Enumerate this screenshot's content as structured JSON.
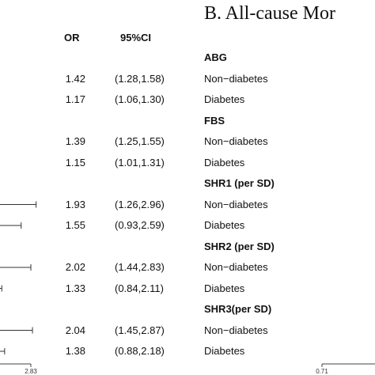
{
  "header": {
    "panel_title": "B. All-cause Mor",
    "col_or": "OR",
    "col_ci": "95%CI"
  },
  "chart_data": {
    "type": "forest",
    "title": "",
    "x_tick_left": "2.83",
    "x_tick_right": "0.71",
    "groups": [
      {
        "name": "ABG",
        "rows": [
          {
            "label": "Non−diabetes",
            "or": 1.42,
            "or_text": "1.42",
            "lo": 1.28,
            "hi": 1.58,
            "ci_text": "(1.28,1.58)"
          },
          {
            "label": "Diabetes",
            "or": 1.17,
            "or_text": "1.17",
            "lo": 1.06,
            "hi": 1.3,
            "ci_text": "(1.06,1.30)"
          }
        ]
      },
      {
        "name": "FBS",
        "rows": [
          {
            "label": "Non−diabetes",
            "or": 1.39,
            "or_text": "1.39",
            "lo": 1.25,
            "hi": 1.55,
            "ci_text": "(1.25,1.55)"
          },
          {
            "label": "Diabetes",
            "or": 1.15,
            "or_text": "1.15",
            "lo": 1.01,
            "hi": 1.31,
            "ci_text": "(1.01,1.31)"
          }
        ]
      },
      {
        "name": "SHR1 (per SD)",
        "rows": [
          {
            "label": "Non−diabetes",
            "or": 1.93,
            "or_text": "1.93",
            "lo": 1.26,
            "hi": 2.96,
            "ci_text": "(1.26,2.96)"
          },
          {
            "label": "Diabetes",
            "or": 1.55,
            "or_text": "1.55",
            "lo": 0.93,
            "hi": 2.59,
            "ci_text": "(0.93,2.59)"
          }
        ]
      },
      {
        "name": "SHR2 (per SD)",
        "rows": [
          {
            "label": "Non−diabetes",
            "or": 2.02,
            "or_text": "2.02",
            "lo": 1.44,
            "hi": 2.83,
            "ci_text": "(1.44,2.83)"
          },
          {
            "label": "Diabetes",
            "or": 1.33,
            "or_text": "1.33",
            "lo": 0.84,
            "hi": 2.11,
            "ci_text": "(0.84,2.11)"
          }
        ]
      },
      {
        "name": "SHR3(per SD)",
        "rows": [
          {
            "label": "Non−diabetes",
            "or": 2.04,
            "or_text": "2.04",
            "lo": 1.45,
            "hi": 2.87,
            "ci_text": "(1.45,2.87)"
          },
          {
            "label": "Diabetes",
            "or": 1.38,
            "or_text": "1.38",
            "lo": 0.88,
            "hi": 2.18,
            "ci_text": "(0.88,2.18)"
          }
        ]
      }
    ]
  }
}
